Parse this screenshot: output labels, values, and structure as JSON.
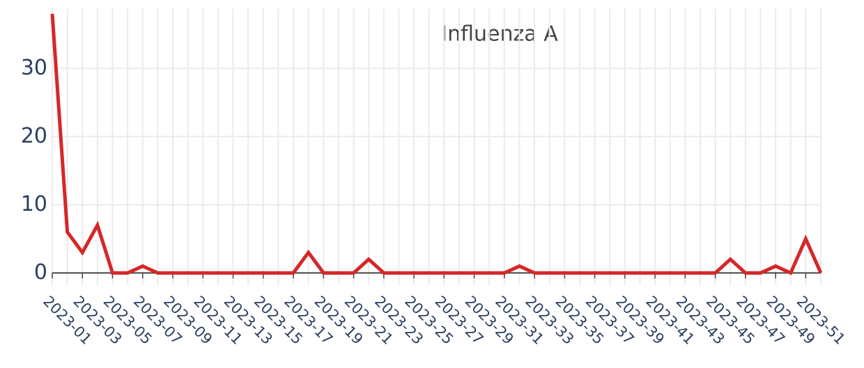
{
  "chart_data": {
    "type": "line",
    "title": "Influenza A",
    "categories": [
      "2023-01",
      null,
      "2023-03",
      null,
      "2023-05",
      null,
      "2023-07",
      null,
      "2023-09",
      null,
      "2023-11",
      null,
      "2023-13",
      null,
      "2023-15",
      null,
      "2023-17",
      null,
      "2023-19",
      null,
      "2023-21",
      null,
      "2023-23",
      null,
      "2023-25",
      null,
      "2023-27",
      null,
      "2023-29",
      null,
      "2023-31",
      null,
      "2023-33",
      null,
      "2023-35",
      null,
      "2023-37",
      null,
      "2023-39",
      null,
      "2023-41",
      null,
      "2023-43",
      null,
      "2023-45",
      null,
      "2023-47",
      null,
      "2023-49",
      null,
      "2023-51",
      null
    ],
    "series": [
      {
        "name": "Influenza A",
        "color": "#d62728",
        "values": [
          38,
          6,
          3,
          7,
          0,
          0,
          1,
          0,
          0,
          0,
          0,
          0,
          0,
          0,
          0,
          0,
          0,
          3,
          0,
          0,
          0,
          2,
          0,
          0,
          0,
          0,
          0,
          0,
          0,
          0,
          0,
          1,
          0,
          0,
          0,
          0,
          0,
          0,
          0,
          0,
          0,
          0,
          0,
          0,
          0,
          2,
          0,
          0,
          1,
          0,
          5,
          0
        ]
      }
    ],
    "ylim": [
      -1.8,
      38.8
    ],
    "yticks": [
      0,
      10,
      20,
      30
    ],
    "grid": true
  }
}
